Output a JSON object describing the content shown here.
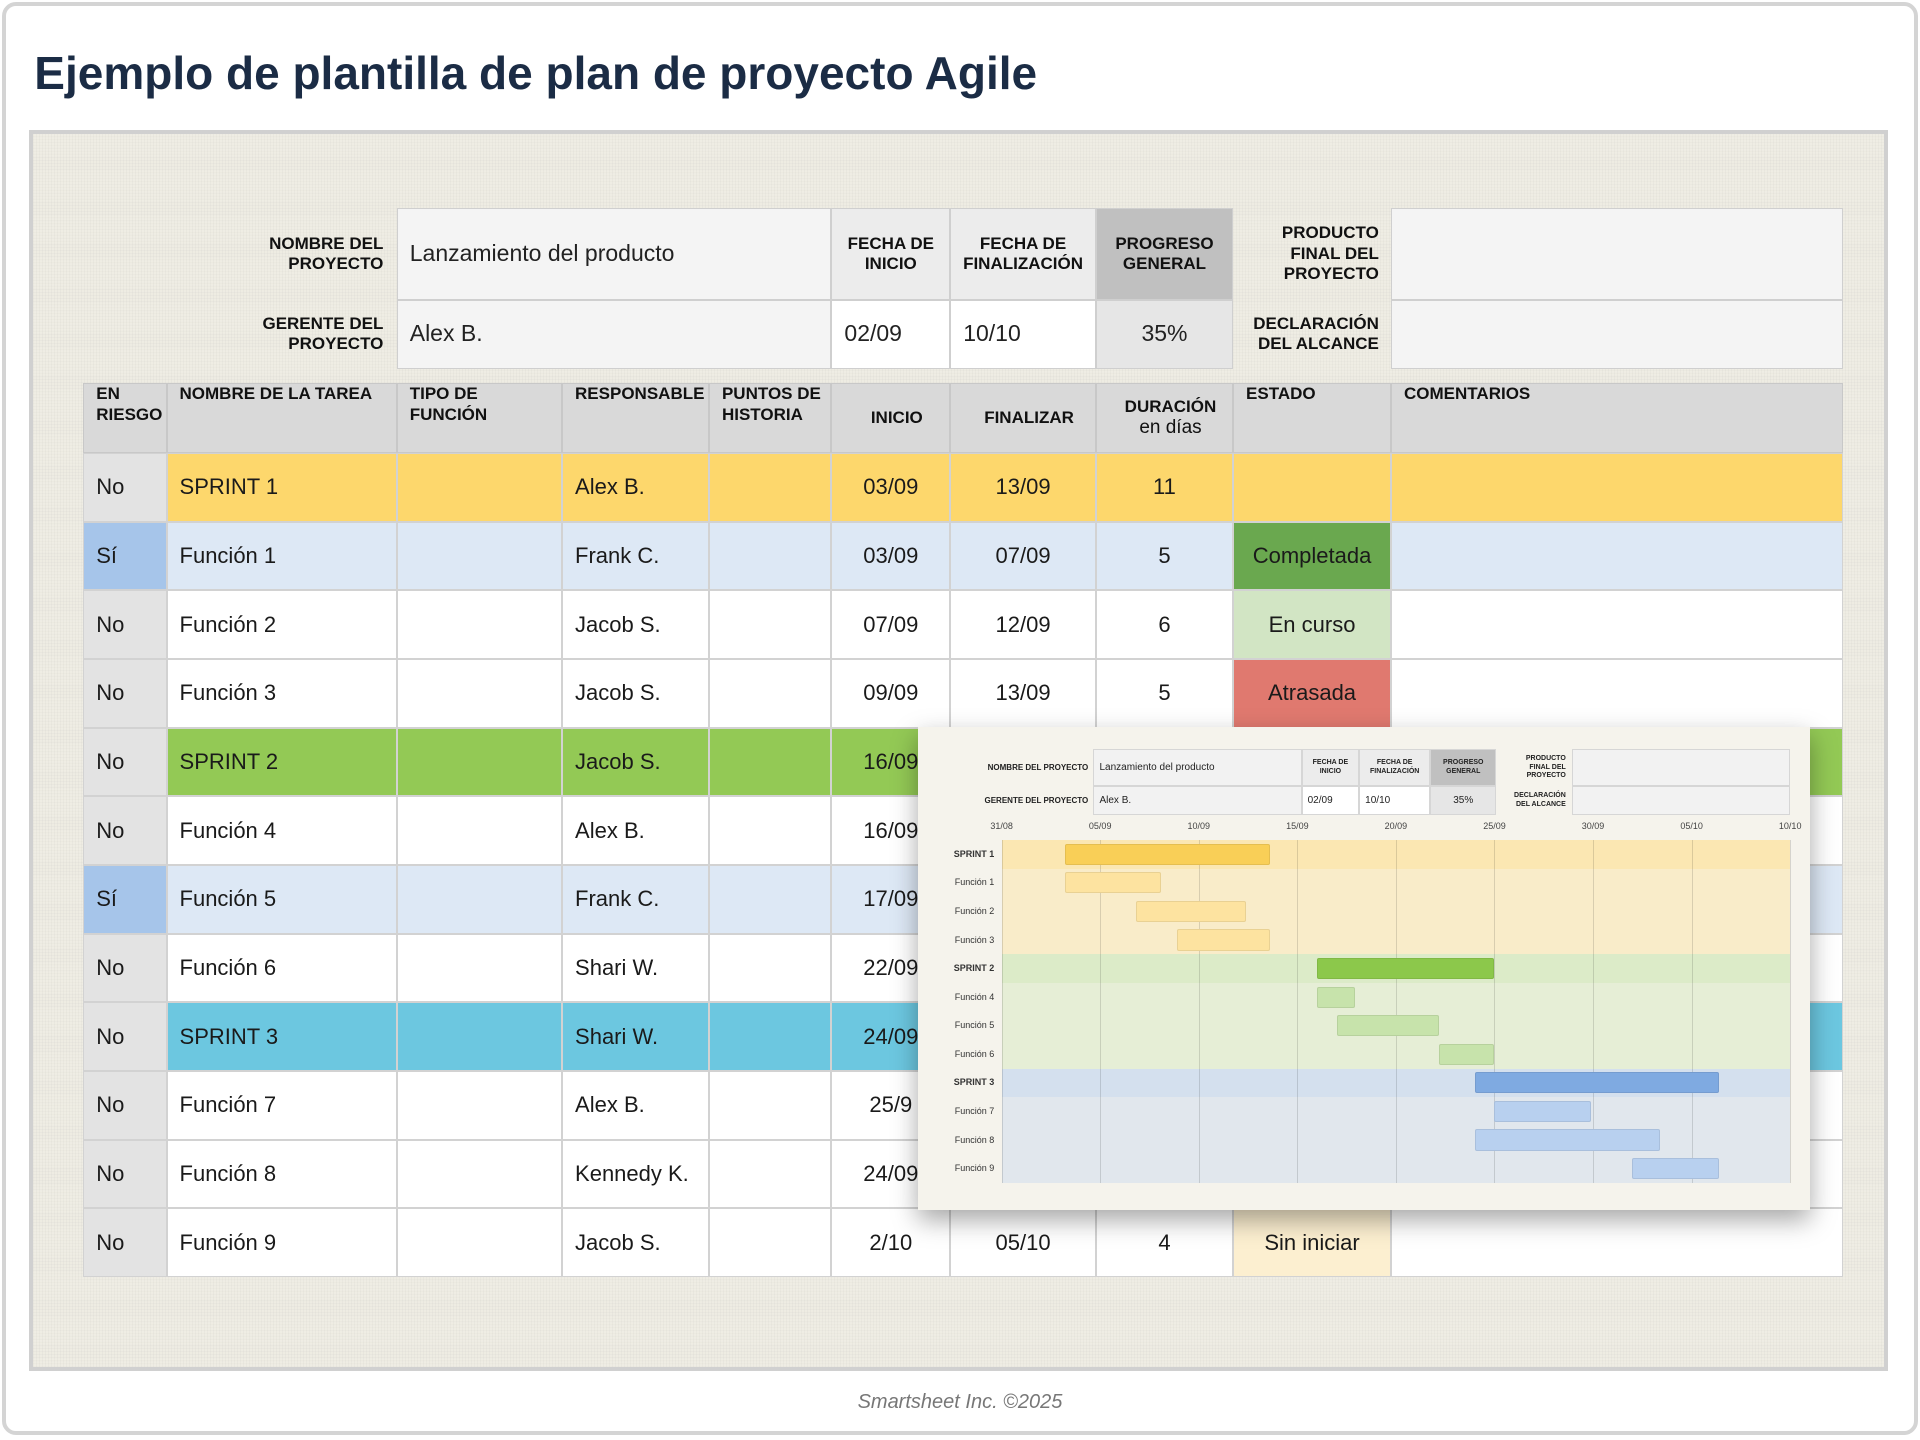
{
  "title": "Ejemplo de plantilla de plan de proyecto Agile",
  "project": {
    "name_label": "NOMBRE DEL PROYECTO",
    "name": "Lanzamiento del producto",
    "manager_label": "GERENTE DEL PROYECTO",
    "manager": "Alex B.",
    "start_label": "FECHA DE\nINICIO",
    "start": "02/09",
    "end_label": "FECHA DE\nFINALIZACIÓN",
    "end": "10/10",
    "progress_label": "PROGRESO\nGENERAL",
    "progress": "35%",
    "deliverable_label": "PRODUCTO\nFINAL DEL\nPROYECTO",
    "scope_label": "DECLARACIÓN\nDEL ALCANCE"
  },
  "table": {
    "headers": [
      "EN\nRIESGO",
      "NOMBRE DE LA TAREA",
      "TIPO DE\nFUNCIÓN",
      "RESPONSABLE",
      "PUNTOS DE\nHISTORIA",
      "INICIO",
      "FINALIZAR",
      "DURACIÓN",
      "ESTADO",
      "COMENTARIOS"
    ],
    "duration_unit": "en días",
    "rows": [
      {
        "cells": [
          "No",
          "SPRINT 1",
          null,
          "Alex B.",
          null,
          "03/09",
          "13/09",
          11,
          null,
          null
        ],
        "color": "#fdd76c",
        "risk_color": "#e3e3e3"
      },
      {
        "cells": [
          "Sí",
          "Función 1",
          null,
          "Frank C.",
          null,
          "03/09",
          "07/09",
          5,
          "Completada",
          null
        ],
        "color": "#dde8f5",
        "risk_color": "#a6c5ea",
        "status_color": "#6aa84f"
      },
      {
        "cells": [
          "No",
          "Función 2",
          null,
          "Jacob S.",
          null,
          "07/09",
          "12/09",
          6,
          "En curso",
          null
        ],
        "color": "#ffffff",
        "risk_color": "#e3e3e3",
        "status_color": "#d2e5c4"
      },
      {
        "cells": [
          "No",
          "Función 3",
          null,
          "Jacob S.",
          null,
          "09/09",
          "13/09",
          5,
          "Atrasada",
          null
        ],
        "color": "#ffffff",
        "risk_color": "#e3e3e3",
        "status_color": "#e0796f"
      },
      {
        "cells": [
          "No",
          "SPRINT 2",
          null,
          "Jacob S.",
          null,
          "16/09",
          null,
          null,
          null,
          null
        ],
        "color": "#93c955",
        "risk_color": "#e3e3e3"
      },
      {
        "cells": [
          "No",
          "Función 4",
          null,
          "Alex B.",
          null,
          "16/09",
          null,
          null,
          null,
          null
        ],
        "color": "#ffffff",
        "risk_color": "#e3e3e3"
      },
      {
        "cells": [
          "Sí",
          "Función 5",
          null,
          "Frank C.",
          null,
          "17/09",
          null,
          null,
          null,
          null
        ],
        "color": "#dde8f5",
        "risk_color": "#a6c5ea"
      },
      {
        "cells": [
          "No",
          "Función 6",
          null,
          "Shari W.",
          null,
          "22/09",
          null,
          null,
          null,
          null
        ],
        "color": "#ffffff",
        "risk_color": "#e3e3e3"
      },
      {
        "cells": [
          "No",
          "SPRINT 3",
          null,
          "Shari W.",
          null,
          "24/09",
          null,
          null,
          null,
          null
        ],
        "color": "#6cc7e0",
        "risk_color": "#e3e3e3"
      },
      {
        "cells": [
          "No",
          "Función 7",
          null,
          "Alex B.",
          null,
          "25/9",
          null,
          null,
          null,
          null
        ],
        "color": "#ffffff",
        "risk_color": "#e3e3e3"
      },
      {
        "cells": [
          "No",
          "Función 8",
          null,
          "Kennedy K.",
          null,
          "24/09",
          null,
          null,
          null,
          null
        ],
        "color": "#ffffff",
        "risk_color": "#e3e3e3"
      },
      {
        "cells": [
          "No",
          "Función 9",
          null,
          "Jacob S.",
          null,
          "2/10",
          "05/10",
          4,
          "Sin iniciar",
          null
        ],
        "color": "#ffffff",
        "risk_color": "#e3e3e3",
        "status_color": "#fcefd0"
      }
    ]
  },
  "gantt": {
    "xlim": [
      0,
      40
    ],
    "xticks": [
      {
        "value": 0,
        "label": "31/08"
      },
      {
        "value": 5,
        "label": "05/09"
      },
      {
        "value": 10,
        "label": "10/09"
      },
      {
        "value": 15,
        "label": "15/09"
      },
      {
        "value": 20,
        "label": "20/09"
      },
      {
        "value": 25,
        "label": "25/09"
      },
      {
        "value": 30,
        "label": "30/09"
      },
      {
        "value": 35,
        "label": "05/10"
      },
      {
        "value": 40,
        "label": "10/10"
      }
    ],
    "band_colors": [
      "#fbe7b2",
      "#dcebc8",
      "#d4e0ee"
    ],
    "bars": [
      {
        "start": 3.2,
        "end": 13.6,
        "color": "#f9cf57"
      },
      {
        "start": 3.2,
        "end": 8.1,
        "color": "#fde3a0"
      },
      {
        "start": 6.8,
        "end": 12.4,
        "color": "#fde3a0"
      },
      {
        "start": 8.9,
        "end": 13.6,
        "color": "#fde3a0"
      },
      {
        "start": 16,
        "end": 25,
        "color": "#8cc84b"
      },
      {
        "start": 16,
        "end": 17.9,
        "color": "#c7e3ab"
      },
      {
        "start": 17,
        "end": 22.2,
        "color": "#c7e3ab"
      },
      {
        "start": 22.2,
        "end": 25,
        "color": "#c7e3ab"
      },
      {
        "start": 24,
        "end": 36.4,
        "color": "#7faae1"
      },
      {
        "start": 25,
        "end": 29.9,
        "color": "#b8d0ef"
      },
      {
        "start": 24,
        "end": 33.4,
        "color": "#b8d0ef"
      },
      {
        "start": 32,
        "end": 36.4,
        "color": "#b8d0ef"
      }
    ]
  },
  "footer": "Smartsheet Inc. ©2025"
}
